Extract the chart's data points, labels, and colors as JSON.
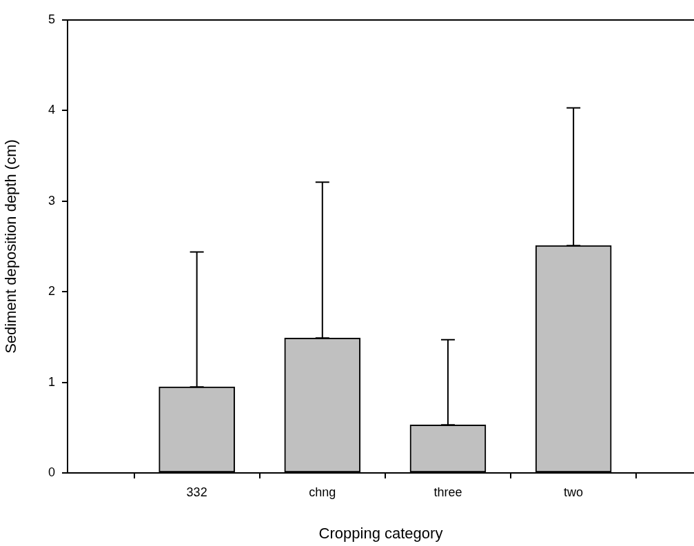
{
  "chart_data": {
    "type": "bar",
    "xlabel": "Cropping category",
    "ylabel": "Sediment deposition depth (cm)",
    "categories": [
      "332",
      "chng",
      "three",
      "two"
    ],
    "values": [
      0.95,
      1.49,
      0.53,
      2.51
    ],
    "errors": [
      [
        0.95,
        2.44
      ],
      [
        1.49,
        3.21
      ],
      [
        0.53,
        1.47
      ],
      [
        2.51,
        4.03
      ]
    ],
    "color": "#c0c0c0",
    "ylim": [
      0,
      5
    ],
    "yticks": [
      0,
      1,
      2,
      3,
      4,
      5
    ],
    "legend": false
  }
}
